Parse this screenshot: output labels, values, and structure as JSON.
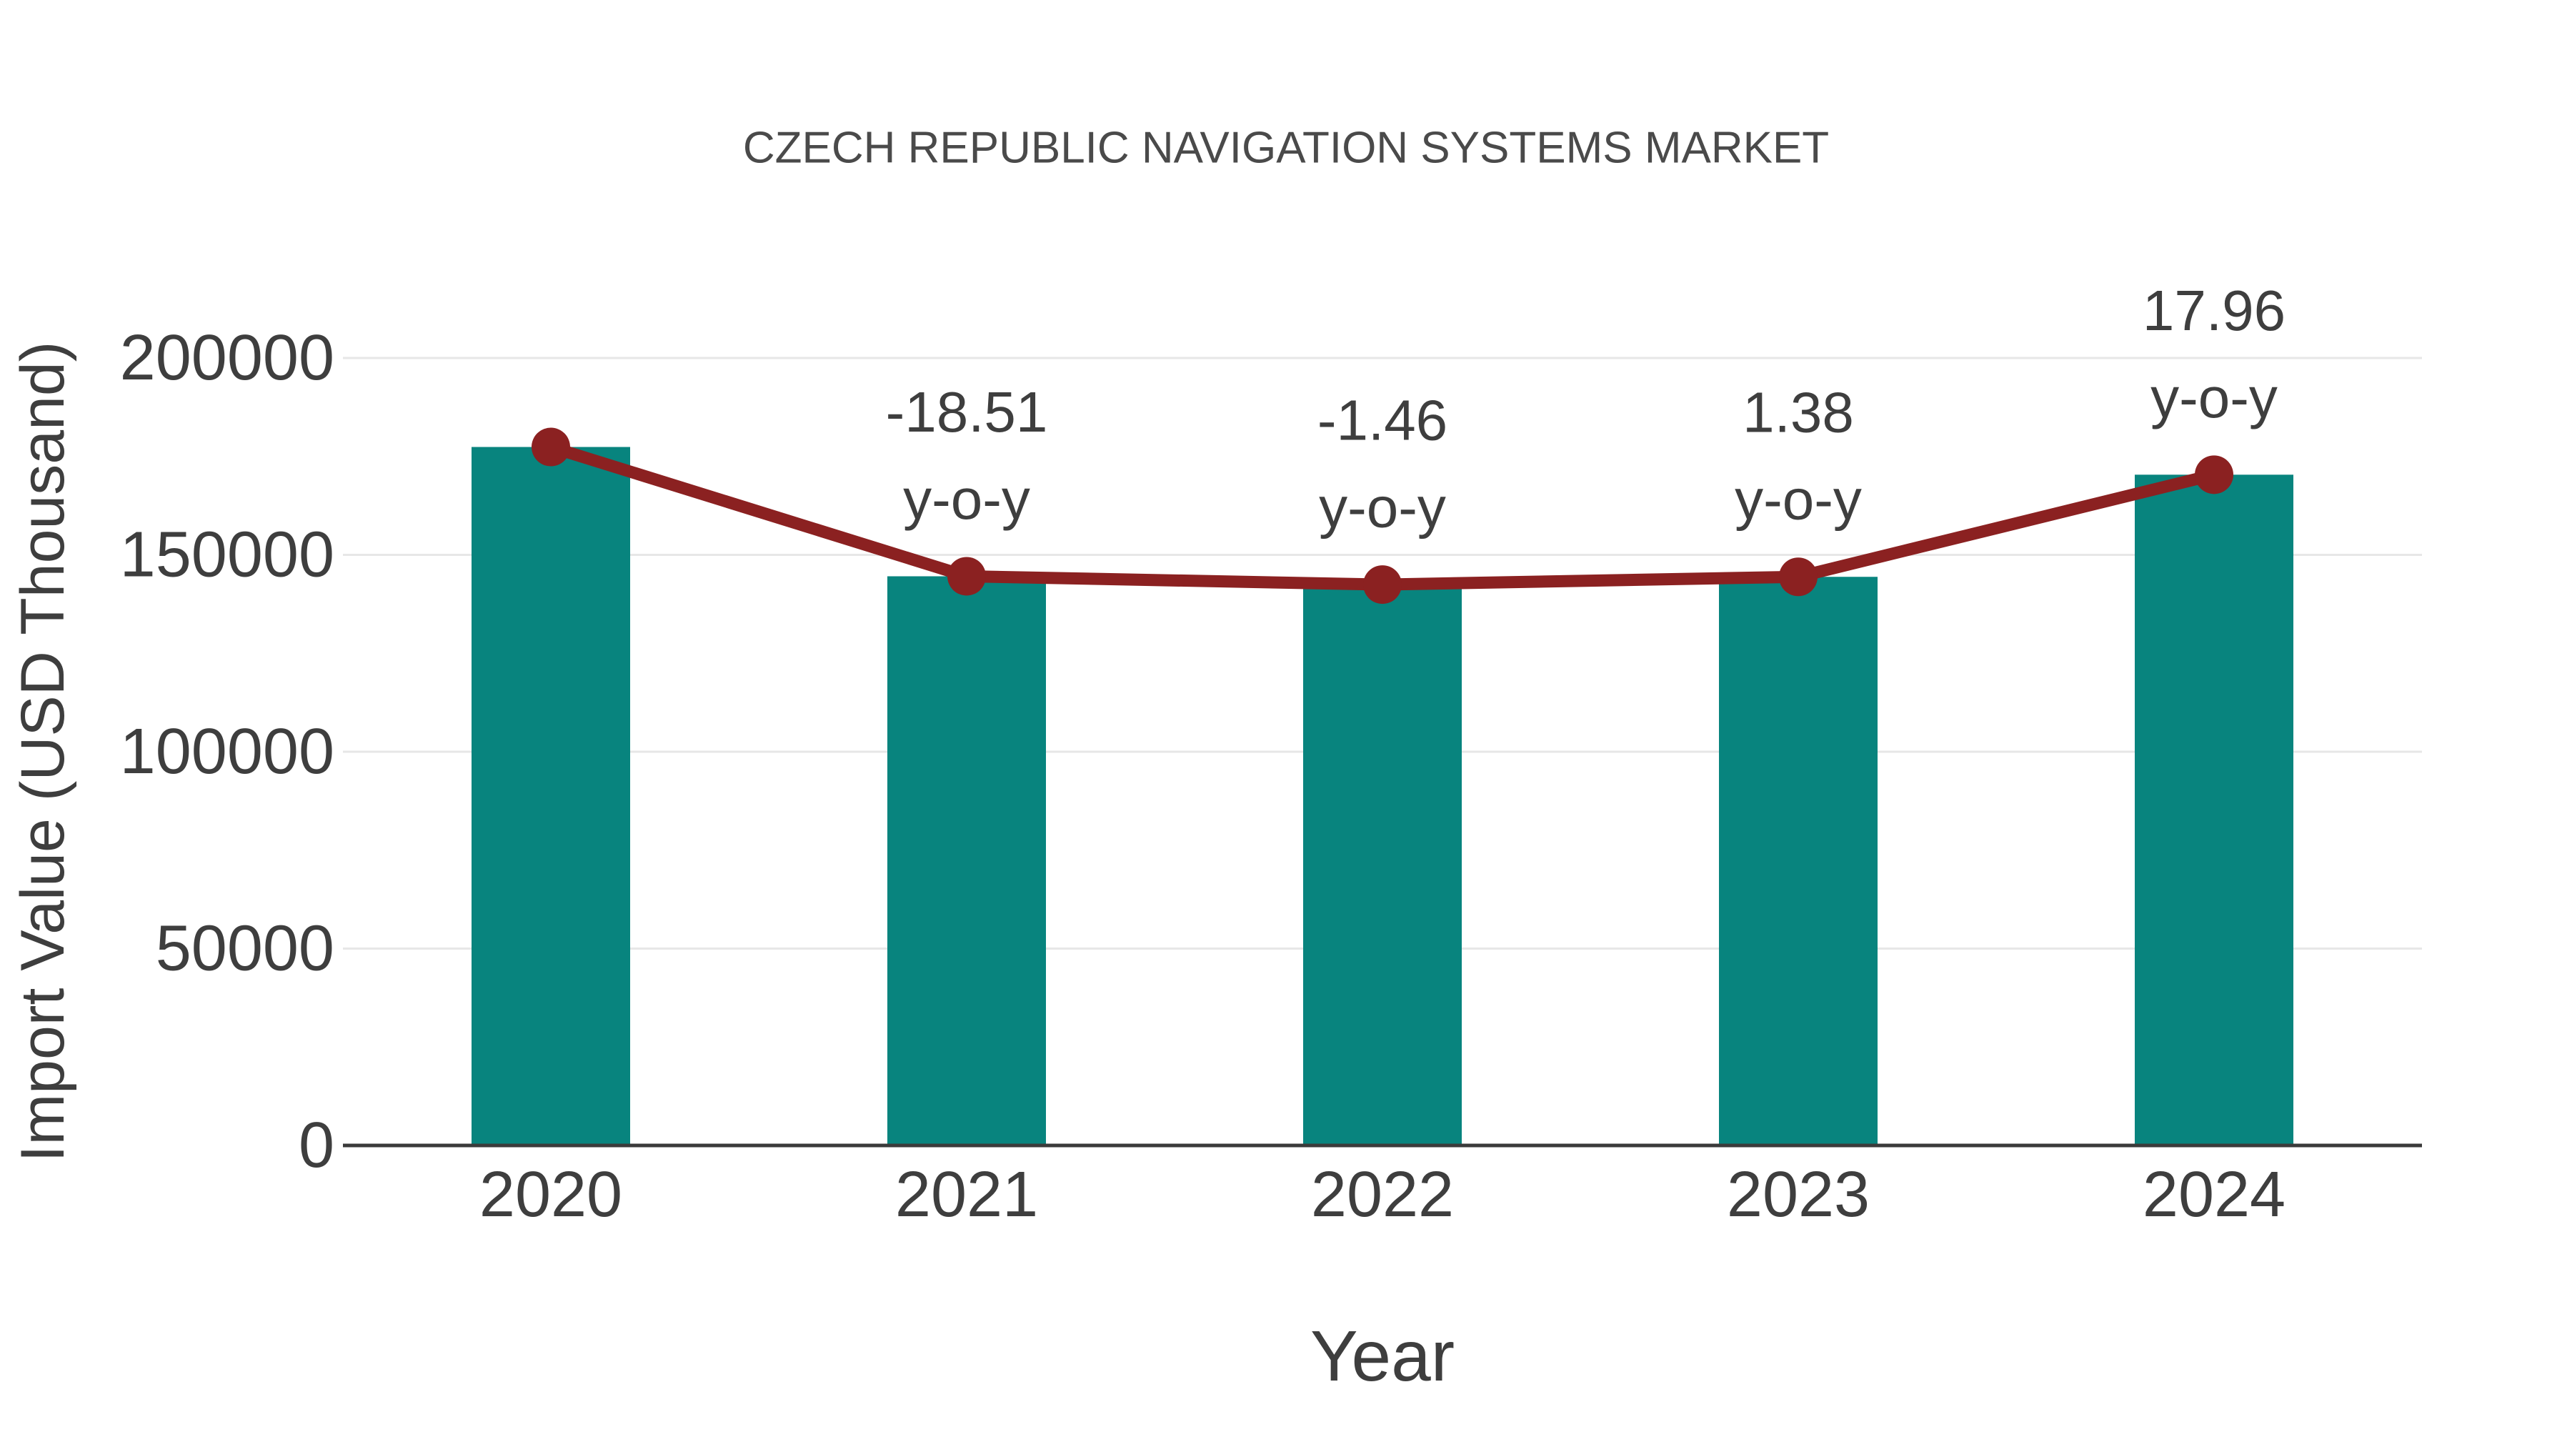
{
  "chart": {
    "title": "CZECH REPUBLIC NAVIGATION SYSTEMS MARKET",
    "xlabel": "Year",
    "ylabel": "Import Value (USD Thousand)"
  },
  "chart_data": {
    "type": "bar",
    "title": "CZECH REPUBLIC NAVIGATION SYSTEMS MARKET",
    "xlabel": "Year",
    "ylabel": "Import Value (USD Thousand)",
    "categories": [
      "2020",
      "2021",
      "2022",
      "2023",
      "2024"
    ],
    "series": [
      {
        "name": "Import Value (USD Thousand)",
        "type": "bar",
        "color": "#08847e",
        "values": [
          177400,
          144560,
          142450,
          144420,
          170360
        ]
      },
      {
        "name": "y-o-y change",
        "type": "line",
        "color": "#8b2121",
        "values": [
          177400,
          144560,
          142450,
          144420,
          170360
        ],
        "point_labels_pct": [
          null,
          -18.51,
          -1.46,
          1.38,
          17.96
        ]
      }
    ],
    "annotations": [
      {
        "category": "2021",
        "line1": "-18.51",
        "line2": "y-o-y"
      },
      {
        "category": "2022",
        "line1": "-1.46",
        "line2": "y-o-y"
      },
      {
        "category": "2023",
        "line1": "1.38",
        "line2": "y-o-y"
      },
      {
        "category": "2024",
        "line1": "17.96",
        "line2": "y-o-y"
      }
    ],
    "ylim": [
      0,
      200000
    ],
    "yticks": [
      0,
      50000,
      100000,
      150000,
      200000
    ],
    "grid": "horizontal",
    "legend": "none"
  },
  "colors": {
    "bar": "#08847e",
    "line": "#8b2121",
    "marker": "#8b2121",
    "gridline": "#e7e7e7",
    "axis_line": "#3b3b3b",
    "text": "#3e3e3e",
    "title_text": "#4a4a4a",
    "background": "#ffffff"
  }
}
